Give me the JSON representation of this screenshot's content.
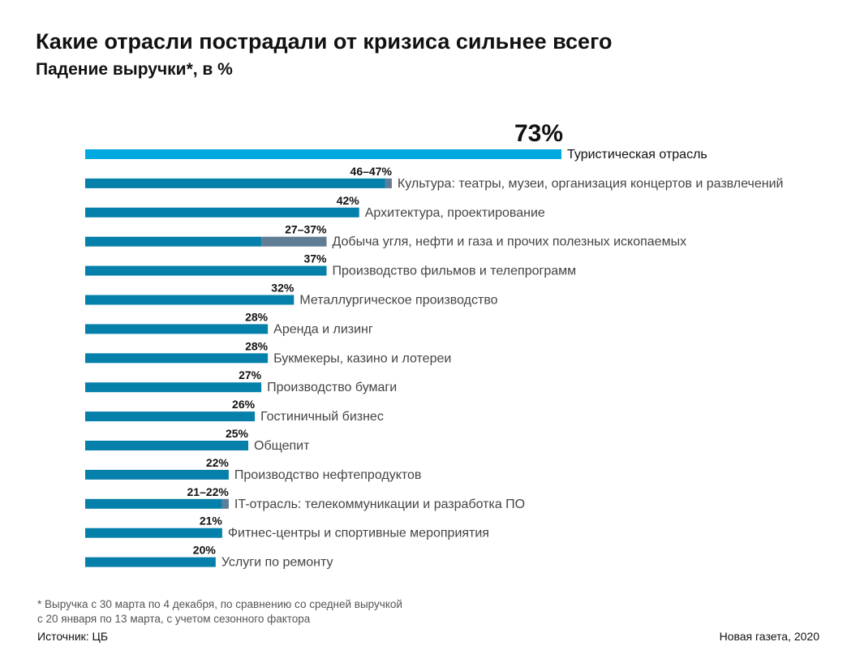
{
  "chart_data": {
    "type": "bar",
    "orientation": "horizontal",
    "title": "Какие отрасли пострадали от кризиса сильнее всего",
    "subtitle": "Падение выручки*, в %",
    "xlim": [
      0,
      73
    ],
    "grid": false,
    "colors": {
      "highlight": "#00a9df",
      "main": "#0580ab",
      "range": "#607d96"
    },
    "categories": [
      "Туристическая отрасль",
      "Культура: театры, музеи, организация концертов и развлечений",
      "Архитектура, проектирование",
      "Добыча угля, нефти и газа и прочих полезных ископаемых",
      "Производство фильмов и телепрограмм",
      "Металлургическое производство",
      "Аренда и лизинг",
      "Букмекеры, казино и лотереи",
      "Производство бумаги",
      "Гостиничный бизнес",
      "Общепит",
      "Производство нефтепродуктов",
      "IT-отрасль: телекоммуникации и разработка ПО",
      "Фитнес-центры и спортивные мероприятия",
      "Услуги по ремонту"
    ],
    "values_low": [
      73,
      46,
      42,
      27,
      37,
      32,
      28,
      28,
      27,
      26,
      25,
      22,
      21,
      21,
      20
    ],
    "values_high": [
      73,
      47,
      42,
      37,
      37,
      32,
      28,
      28,
      27,
      26,
      25,
      22,
      22,
      21,
      20
    ],
    "data_labels": [
      "73%",
      "46–47%",
      "42%",
      "27–37%",
      "37%",
      "32%",
      "28%",
      "28%",
      "27%",
      "26%",
      "25%",
      "22%",
      "21–22%",
      "21%",
      "20%"
    ]
  },
  "footnote": [
    "* Выручка с 30 марта по 4 декабря, по сравнению со средней выручкой",
    "с 20 января по 13 марта, с учетом сезонного фактора"
  ],
  "source": "Источник: ЦБ",
  "credit": "Новая газета, 2020"
}
